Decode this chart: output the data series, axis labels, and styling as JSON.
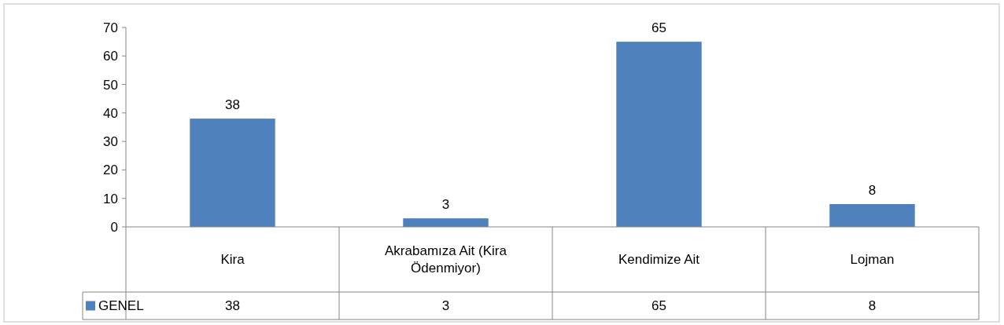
{
  "chart_data": {
    "type": "bar",
    "categories": [
      "Kira",
      "Akrabamıza Ait (Kira Ödenmiyor)",
      "Kendimize Ait",
      "Lojman"
    ],
    "series": [
      {
        "name": "GENEL",
        "color": "#4f81bd",
        "values": [
          38,
          3,
          65,
          8
        ],
        "value_labels": [
          "38",
          "3",
          "65",
          "8"
        ]
      }
    ],
    "ylim": [
      0,
      70
    ],
    "yticks": [
      0,
      10,
      20,
      30,
      40,
      50,
      60,
      70
    ],
    "grid": false,
    "annotations": [
      "38",
      "3",
      "65",
      "8"
    ],
    "legend": "bottom left"
  }
}
